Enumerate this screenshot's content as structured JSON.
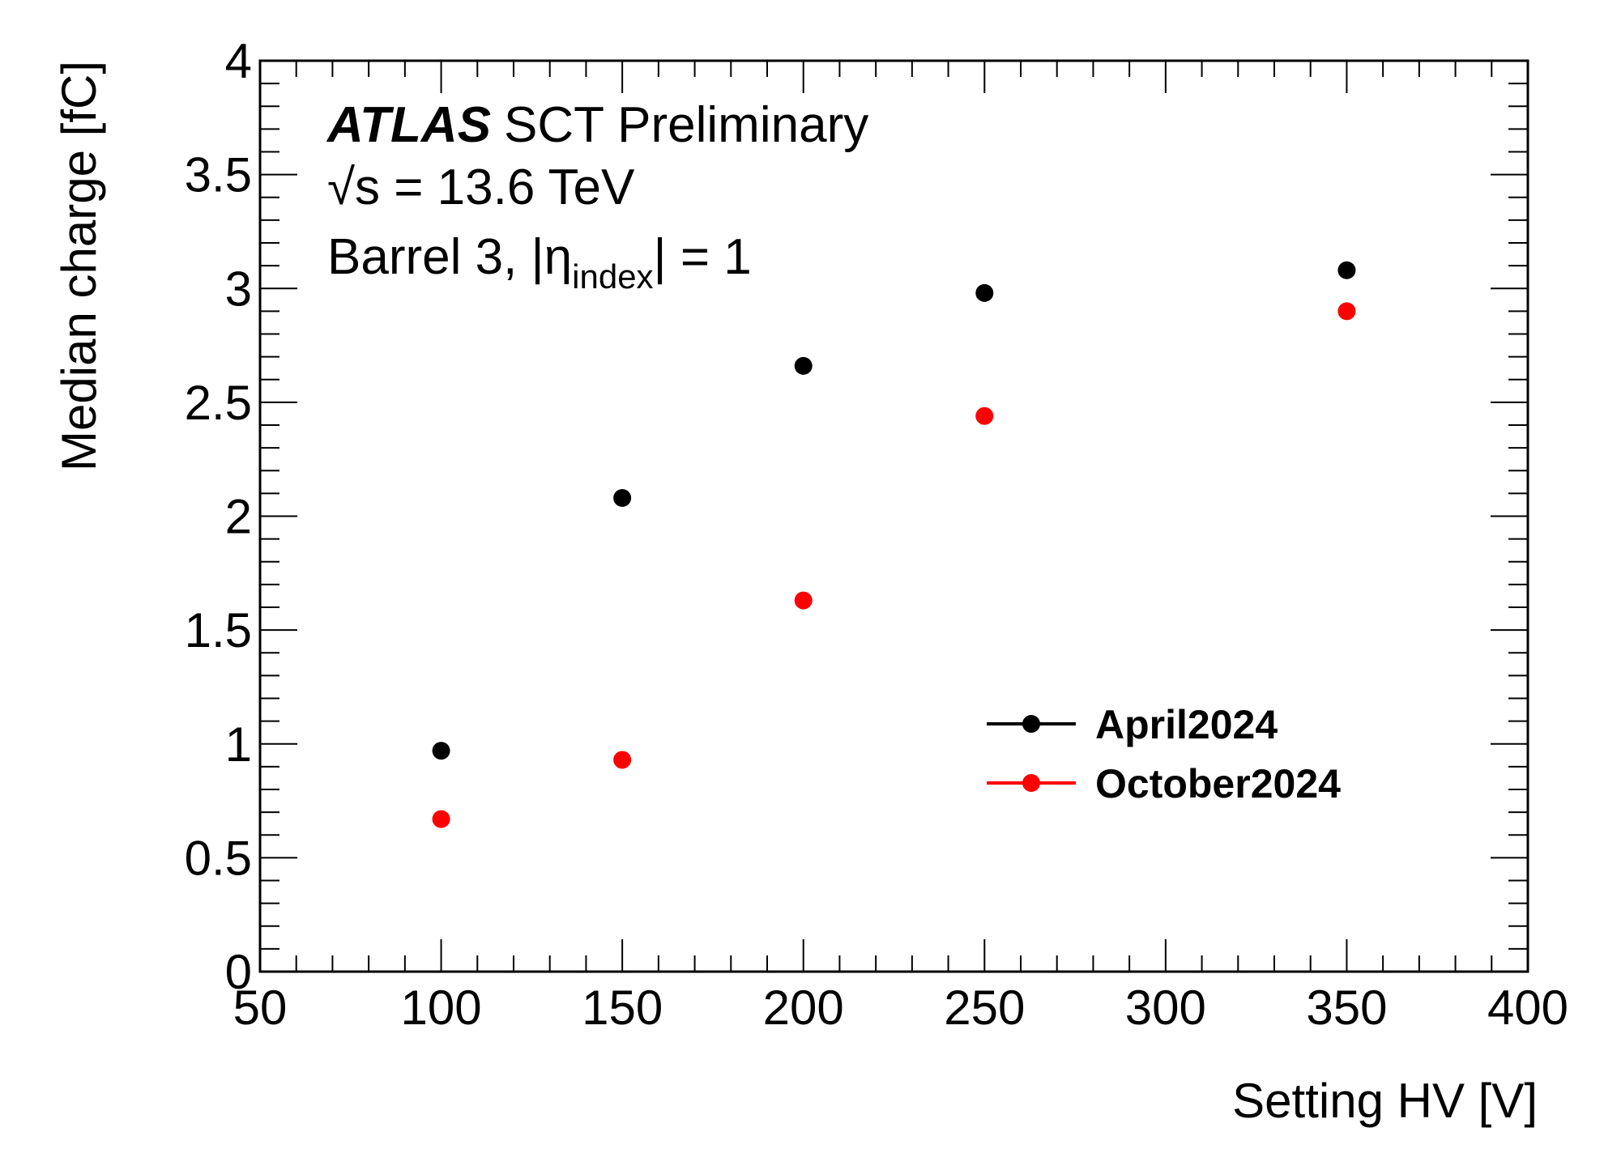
{
  "chart_data": {
    "type": "scatter",
    "xlabel": "Setting HV [V]",
    "ylabel": "Median charge [fC]",
    "xlim": [
      50,
      400
    ],
    "ylim": [
      0,
      4
    ],
    "x_ticks": [
      "50",
      "100",
      "150",
      "200",
      "250",
      "300",
      "350",
      "400"
    ],
    "y_ticks": [
      "0",
      "0.5",
      "1",
      "1.5",
      "2",
      "2.5",
      "3",
      "3.5",
      "4"
    ],
    "grid": false,
    "legend_position": "middle-right",
    "series": [
      {
        "name": "April2024",
        "color": "#000000",
        "points": [
          {
            "x": 100,
            "y": 0.97
          },
          {
            "x": 150,
            "y": 2.08
          },
          {
            "x": 200,
            "y": 2.66
          },
          {
            "x": 250,
            "y": 2.98
          },
          {
            "x": 350,
            "y": 3.08
          }
        ]
      },
      {
        "name": "October2024",
        "color": "#ff0000",
        "points": [
          {
            "x": 100,
            "y": 0.67
          },
          {
            "x": 150,
            "y": 0.93
          },
          {
            "x": 200,
            "y": 1.63
          },
          {
            "x": 250,
            "y": 2.44
          },
          {
            "x": 350,
            "y": 2.9
          }
        ]
      }
    ],
    "annotations": {
      "experiment": "ATLAS",
      "label": "SCT Preliminary",
      "energy": "√s = 13.6 TeV",
      "region_prefix": "Barrel 3, |η",
      "region_subscript": "index",
      "region_suffix": "| = 1"
    }
  }
}
